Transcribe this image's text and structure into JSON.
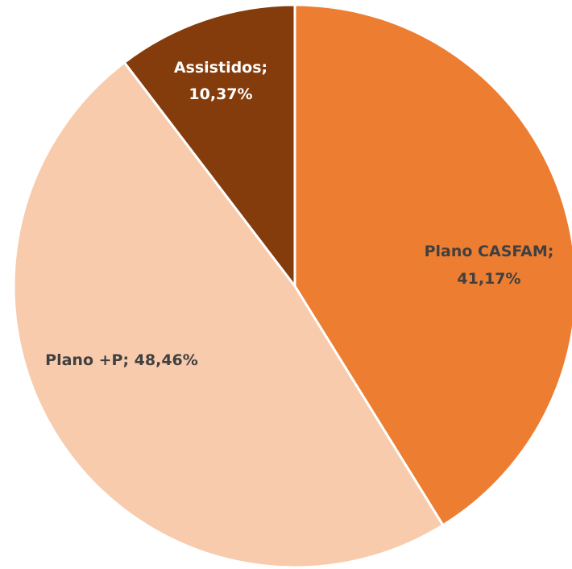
{
  "chart_data": {
    "type": "pie",
    "title": "",
    "slices": [
      {
        "name": "Plano CASFAM",
        "value": 41.17,
        "label_line1": "Plano CASFAM;",
        "label_line2": "41,17%",
        "color": "#ED7D31"
      },
      {
        "name": "Plano +P",
        "value": 48.46,
        "label_line1": "Plano +P; 48,46%",
        "label_line2": "",
        "color": "#F8CBAD"
      },
      {
        "name": "Assistidos",
        "value": 10.37,
        "label_line1": "Assistidos;",
        "label_line2": "10,37%",
        "color": "#843C0C"
      }
    ],
    "start_angle": "12 o'clock",
    "direction": "clockwise",
    "legend": "none"
  }
}
